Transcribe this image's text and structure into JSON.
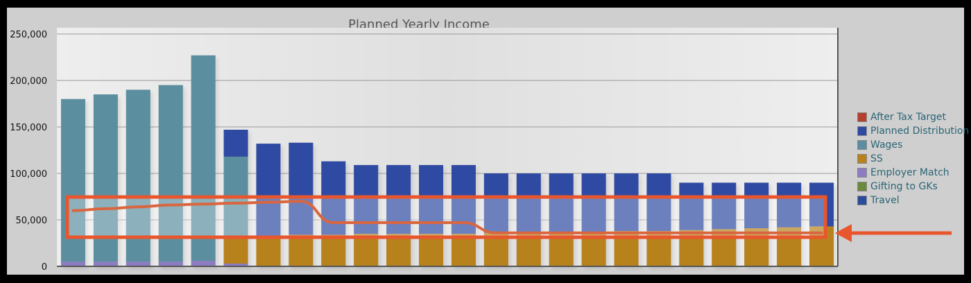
{
  "chart_data": {
    "type": "bar",
    "title": "Planned Yearly Income",
    "ylim": [
      0,
      250000
    ],
    "yticks": [
      "0",
      "50,000",
      "100,000",
      "150,000",
      "200,000",
      "250,000"
    ],
    "ytick_values": [
      0,
      50000,
      100000,
      150000,
      200000,
      250000
    ],
    "grid": true,
    "legend_position": "right",
    "legend": [
      {
        "name": "After Tax Target",
        "color": "#b5402e"
      },
      {
        "name": "Planned Distribution",
        "color": "#2f4aa3"
      },
      {
        "name": "Wages",
        "color": "#5b8fa0"
      },
      {
        "name": "SS",
        "color": "#b7811c"
      },
      {
        "name": "Employer Match",
        "color": "#8e7cc3"
      },
      {
        "name": "Gifting to GKs",
        "color": "#6a8a3e"
      },
      {
        "name": "Travel",
        "color": "#2b4b9b"
      }
    ],
    "series": [
      {
        "name": "Employer Match",
        "values": [
          5000,
          5000,
          5000,
          5000,
          6000,
          3000,
          0,
          0,
          0,
          0,
          0,
          0,
          0,
          0,
          0,
          0,
          0,
          0,
          0,
          0,
          0,
          0,
          0,
          0
        ]
      },
      {
        "name": "SS",
        "values": [
          0,
          0,
          0,
          0,
          0,
          30000,
          33000,
          34000,
          34000,
          35000,
          35000,
          35000,
          35000,
          36000,
          36000,
          37000,
          37000,
          38000,
          38000,
          39000,
          40000,
          41000,
          42000,
          43000
        ]
      },
      {
        "name": "Wages",
        "values": [
          175000,
          180000,
          185000,
          190000,
          221000,
          85000,
          0,
          0,
          0,
          0,
          0,
          0,
          0,
          0,
          0,
          0,
          0,
          0,
          0,
          0,
          0,
          0,
          0,
          0
        ]
      },
      {
        "name": "Planned Distribution",
        "values": [
          0,
          0,
          0,
          0,
          0,
          29000,
          99000,
          99000,
          79000,
          74000,
          74000,
          74000,
          74000,
          64000,
          64000,
          63000,
          63000,
          62000,
          62000,
          51000,
          50000,
          49000,
          48000,
          47000
        ]
      }
    ],
    "after_tax_target": [
      60000,
      62000,
      64000,
      66000,
      67000,
      68000,
      69000,
      70000,
      47000,
      47000,
      47000,
      47000,
      47000,
      36000,
      36000,
      36000,
      36000,
      36000,
      36000,
      36000,
      36000,
      36000,
      36000,
      36000
    ]
  }
}
